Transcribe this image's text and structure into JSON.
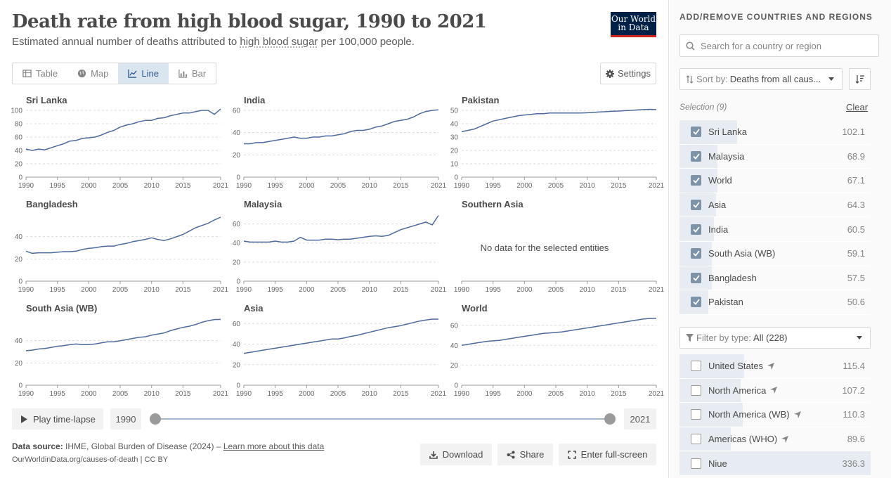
{
  "header": {
    "title": "Death rate from high blood sugar, 1990 to 2021",
    "subtitle_pre": "Estimated annual number of deaths attributed to ",
    "subtitle_link": "high blood sugar",
    "subtitle_post": " per 100,000 people.",
    "logo_line1": "Our World",
    "logo_line2": "in Data"
  },
  "tabs": [
    {
      "label": "Table",
      "icon": "table-icon",
      "active": false
    },
    {
      "label": "Map",
      "icon": "globe-icon",
      "active": false
    },
    {
      "label": "Line",
      "icon": "line-chart-icon",
      "active": true
    },
    {
      "label": "Bar",
      "icon": "bar-chart-icon",
      "active": false
    }
  ],
  "settings_label": "Settings",
  "timeline": {
    "play_label": "Play time-lapse",
    "start_year": "1990",
    "end_year": "2021"
  },
  "footer": {
    "source_label": "Data source:",
    "source_text": " IHME, Global Burden of Disease (2024) – ",
    "learn_more": "Learn more about this data",
    "url": "OurWorldinData.org/causes-of-death | CC BY",
    "download": "Download",
    "share": "Share",
    "fullscreen": "Enter full-screen"
  },
  "sidebar": {
    "heading": "ADD/REMOVE COUNTRIES AND REGIONS",
    "search_placeholder": "Search for a country or region",
    "sort_label": "Sort by:",
    "sort_value": "Deaths from all caus...",
    "selection_label": "Selection (9)",
    "clear_label": "Clear",
    "selected": [
      {
        "name": "Sri Lanka",
        "value": "102.1",
        "frac": 0.3
      },
      {
        "name": "Malaysia",
        "value": "68.9",
        "frac": 0.2
      },
      {
        "name": "World",
        "value": "67.1",
        "frac": 0.2
      },
      {
        "name": "Asia",
        "value": "64.3",
        "frac": 0.19
      },
      {
        "name": "India",
        "value": "60.5",
        "frac": 0.18
      },
      {
        "name": "South Asia (WB)",
        "value": "59.1",
        "frac": 0.17
      },
      {
        "name": "Bangladesh",
        "value": "57.5",
        "frac": 0.17
      },
      {
        "name": "Pakistan",
        "value": "50.6",
        "frac": 0.15
      }
    ],
    "filter_label": "Filter by type:",
    "filter_value": "All (228)",
    "others": [
      {
        "name": "United States",
        "value": "115.4",
        "frac": 0.34,
        "arrow": true
      },
      {
        "name": "North America",
        "value": "107.2",
        "frac": 0.32,
        "arrow": true
      },
      {
        "name": "North America (WB)",
        "value": "110.3",
        "frac": 0.33,
        "arrow": true
      },
      {
        "name": "Americas (WHO)",
        "value": "89.6",
        "frac": 0.27,
        "arrow": true
      },
      {
        "name": "Niue",
        "value": "336.3",
        "frac": 1.0,
        "arrow": false
      }
    ]
  },
  "chart_data": [
    {
      "type": "line",
      "title": "Sri Lanka",
      "x": [
        1990,
        1991,
        1992,
        1993,
        1994,
        1995,
        1996,
        1997,
        1998,
        1999,
        2000,
        2001,
        2002,
        2003,
        2004,
        2005,
        2006,
        2007,
        2008,
        2009,
        2010,
        2011,
        2012,
        2013,
        2014,
        2015,
        2016,
        2017,
        2018,
        2019,
        2020,
        2021
      ],
      "values": [
        42,
        40,
        42,
        41,
        44,
        47,
        50,
        54,
        55,
        58,
        59,
        60,
        63,
        67,
        70,
        75,
        78,
        80,
        83,
        85,
        85,
        88,
        89,
        92,
        94,
        96,
        96,
        98,
        100,
        100,
        94,
        102
      ],
      "ylim": [
        0,
        100
      ],
      "yticks": [
        0,
        20,
        40,
        60,
        80,
        100
      ],
      "xticks": [
        "1990",
        "1995",
        "2000",
        "2005",
        "2010",
        "2015",
        "2021"
      ]
    },
    {
      "type": "line",
      "title": "India",
      "x": [
        1990,
        1991,
        1992,
        1993,
        1994,
        1995,
        1996,
        1997,
        1998,
        1999,
        2000,
        2001,
        2002,
        2003,
        2004,
        2005,
        2006,
        2007,
        2008,
        2009,
        2010,
        2011,
        2012,
        2013,
        2014,
        2015,
        2016,
        2017,
        2018,
        2019,
        2020,
        2021
      ],
      "values": [
        30,
        30,
        31,
        31,
        32,
        33,
        34,
        35,
        36,
        35,
        35,
        36,
        36,
        37,
        37,
        38,
        39,
        41,
        42,
        42,
        43,
        45,
        46,
        48,
        50,
        51,
        52,
        54,
        57,
        59,
        60,
        60.5
      ],
      "ylim": [
        0,
        60
      ],
      "yticks": [
        0,
        20,
        40,
        60
      ],
      "xticks": [
        "1990",
        "1995",
        "2000",
        "2005",
        "2010",
        "2015",
        "2021"
      ]
    },
    {
      "type": "line",
      "title": "Pakistan",
      "x": [
        1990,
        1991,
        1992,
        1993,
        1994,
        1995,
        1996,
        1997,
        1998,
        1999,
        2000,
        2001,
        2002,
        2003,
        2004,
        2005,
        2006,
        2007,
        2008,
        2009,
        2010,
        2011,
        2012,
        2013,
        2014,
        2015,
        2016,
        2017,
        2018,
        2019,
        2020,
        2021
      ],
      "values": [
        34,
        35,
        36,
        38,
        40,
        42,
        43,
        44,
        45,
        46,
        46.5,
        47,
        47.5,
        47.5,
        48,
        48,
        48,
        48,
        48,
        48,
        48.2,
        48.5,
        48.8,
        49,
        49.3,
        49.5,
        49.8,
        50,
        50.3,
        50.6,
        50.8,
        50.6
      ],
      "ylim": [
        0,
        50
      ],
      "yticks": [
        0,
        10,
        20,
        30,
        40,
        50
      ],
      "xticks": [
        "1990",
        "1995",
        "2000",
        "2005",
        "2010",
        "2015",
        "2021"
      ]
    },
    {
      "type": "line",
      "title": "Bangladesh",
      "x": [
        1990,
        1991,
        1992,
        1993,
        1994,
        1995,
        1996,
        1997,
        1998,
        1999,
        2000,
        2001,
        2002,
        2003,
        2004,
        2005,
        2006,
        2007,
        2008,
        2009,
        2010,
        2011,
        2012,
        2013,
        2014,
        2015,
        2016,
        2017,
        2018,
        2019,
        2020,
        2021
      ],
      "values": [
        27,
        25,
        25.5,
        25.5,
        25.5,
        26,
        26.5,
        26.5,
        27,
        28.5,
        29.5,
        30,
        31,
        31.5,
        31.5,
        33,
        34,
        35.5,
        36.5,
        37.5,
        39,
        37.5,
        36.5,
        38,
        40,
        42,
        45,
        48,
        50,
        52,
        55,
        57.5
      ],
      "ylim": [
        0,
        60
      ],
      "yticks": [
        0,
        20,
        40
      ],
      "xticks": [
        "1990",
        "1995",
        "2000",
        "2005",
        "2010",
        "2015",
        "2021"
      ]
    },
    {
      "type": "line",
      "title": "Malaysia",
      "x": [
        1990,
        1991,
        1992,
        1993,
        1994,
        1995,
        1996,
        1997,
        1998,
        1999,
        2000,
        2001,
        2002,
        2003,
        2004,
        2005,
        2006,
        2007,
        2008,
        2009,
        2010,
        2011,
        2012,
        2013,
        2014,
        2015,
        2016,
        2017,
        2018,
        2019,
        2020,
        2021
      ],
      "values": [
        42,
        41,
        41,
        41,
        41,
        42,
        41,
        41,
        42,
        46,
        43,
        43,
        43,
        44,
        44,
        43.5,
        44,
        44,
        45,
        46,
        47,
        47.5,
        47,
        48,
        51,
        54,
        56,
        58,
        60,
        62,
        59,
        68.9
      ],
      "ylim": [
        0,
        70
      ],
      "yticks": [
        0,
        20,
        40,
        60
      ],
      "xticks": [
        "1990",
        "1995",
        "2000",
        "2005",
        "2010",
        "2015",
        "2021"
      ]
    },
    {
      "type": "line",
      "title": "Southern Asia",
      "note": "No data for the selected entities",
      "x": [],
      "values": [],
      "yticks": [],
      "xticks": [
        "1990",
        "1995",
        "2000",
        "2005",
        "2010",
        "2015",
        "2021"
      ]
    },
    {
      "type": "line",
      "title": "South Asia (WB)",
      "x": [
        1990,
        1991,
        1992,
        1993,
        1994,
        1995,
        1996,
        1997,
        1998,
        1999,
        2000,
        2001,
        2002,
        2003,
        2004,
        2005,
        2006,
        2007,
        2008,
        2009,
        2010,
        2011,
        2012,
        2013,
        2014,
        2015,
        2016,
        2017,
        2018,
        2019,
        2020,
        2021
      ],
      "values": [
        31,
        31.5,
        32.5,
        33,
        34,
        35,
        35.5,
        36.5,
        37,
        36.5,
        36.5,
        37,
        38,
        39,
        39,
        40,
        41,
        42,
        43,
        43.5,
        45,
        46,
        47,
        49,
        50.5,
        52,
        53,
        54.5,
        56.5,
        58,
        59,
        59.1
      ],
      "ylim": [
        0,
        60
      ],
      "yticks": [
        0,
        20,
        40
      ],
      "xticks": [
        "1990",
        "1995",
        "2000",
        "2005",
        "2010",
        "2015",
        "2021"
      ]
    },
    {
      "type": "line",
      "title": "Asia",
      "x": [
        1990,
        1991,
        1992,
        1993,
        1994,
        1995,
        1996,
        1997,
        1998,
        1999,
        2000,
        2001,
        2002,
        2003,
        2004,
        2005,
        2006,
        2007,
        2008,
        2009,
        2010,
        2011,
        2012,
        2013,
        2014,
        2015,
        2016,
        2017,
        2018,
        2019,
        2020,
        2021
      ],
      "values": [
        31,
        32,
        33,
        34,
        35,
        36,
        37,
        38,
        39,
        40,
        41,
        42,
        43,
        44,
        45,
        45,
        46,
        47.5,
        48.5,
        50,
        51.5,
        53,
        54.5,
        56,
        57,
        58,
        59.5,
        61,
        62.5,
        63.5,
        64.3,
        64.3
      ],
      "ylim": [
        0,
        65
      ],
      "yticks": [
        0,
        20,
        40,
        60
      ],
      "xticks": [
        "1990",
        "1995",
        "2000",
        "2005",
        "2010",
        "2015",
        "2021"
      ]
    },
    {
      "type": "line",
      "title": "World",
      "x": [
        1990,
        1991,
        1992,
        1993,
        1994,
        1995,
        1996,
        1997,
        1998,
        1999,
        2000,
        2001,
        2002,
        2003,
        2004,
        2005,
        2006,
        2007,
        2008,
        2009,
        2010,
        2011,
        2012,
        2013,
        2014,
        2015,
        2016,
        2017,
        2018,
        2019,
        2020,
        2021
      ],
      "values": [
        40,
        41,
        42,
        43,
        44,
        44.5,
        45,
        46,
        47,
        48,
        49,
        50,
        51,
        52,
        52.5,
        53,
        53.5,
        54.5,
        55.5,
        56.5,
        57.5,
        58.5,
        59.5,
        60.5,
        61.5,
        62.5,
        63.5,
        64.5,
        65.5,
        66.5,
        67,
        67.1
      ],
      "ylim": [
        0,
        67
      ],
      "yticks": [
        0,
        20,
        40,
        60
      ],
      "xticks": [
        "1990",
        "1995",
        "2000",
        "2005",
        "2010",
        "2015",
        "2021"
      ]
    }
  ]
}
